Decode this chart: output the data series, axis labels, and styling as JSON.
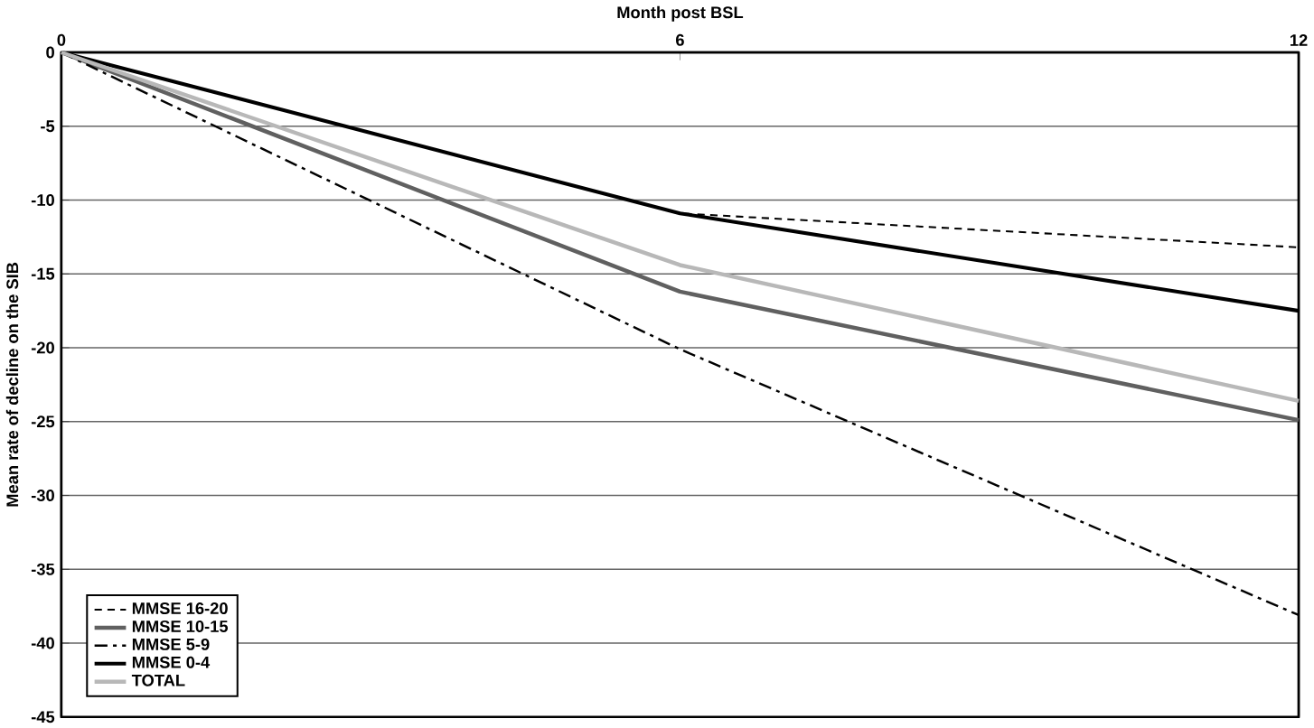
{
  "chart_data": {
    "type": "line",
    "xlabel": "Month post BSL",
    "ylabel": "Mean rate of decline on the SIB",
    "x": [
      0,
      6,
      12
    ],
    "xlim": [
      0,
      12
    ],
    "xticks": [
      0,
      6,
      12
    ],
    "ylim": [
      -45,
      0
    ],
    "yticks": [
      -45,
      -40,
      -35,
      -30,
      -25,
      -20,
      -15,
      -10,
      -5,
      0
    ],
    "grid": "y",
    "legend": "bottom left",
    "marker": "none",
    "series": [
      {
        "name": "MMSE 16-20",
        "color": "#000000",
        "line_style": "dashed",
        "values": [
          0,
          -10.9,
          -13.2
        ]
      },
      {
        "name": "MMSE 10-15",
        "color": "#606060",
        "line_style": "solid",
        "values": [
          0,
          -16.2,
          -24.9
        ]
      },
      {
        "name": "MMSE 5-9",
        "color": "#000000",
        "line_style": "dashdot",
        "values": [
          0,
          -20.1,
          -38.1
        ]
      },
      {
        "name": "MMSE 0-4",
        "color": "#000000",
        "line_style": "solid",
        "values": [
          0,
          -10.9,
          -17.5
        ]
      },
      {
        "name": "TOTAL",
        "color": "#b8b8b8",
        "line_style": "solid",
        "values": [
          0,
          -14.4,
          -23.6
        ]
      }
    ]
  }
}
